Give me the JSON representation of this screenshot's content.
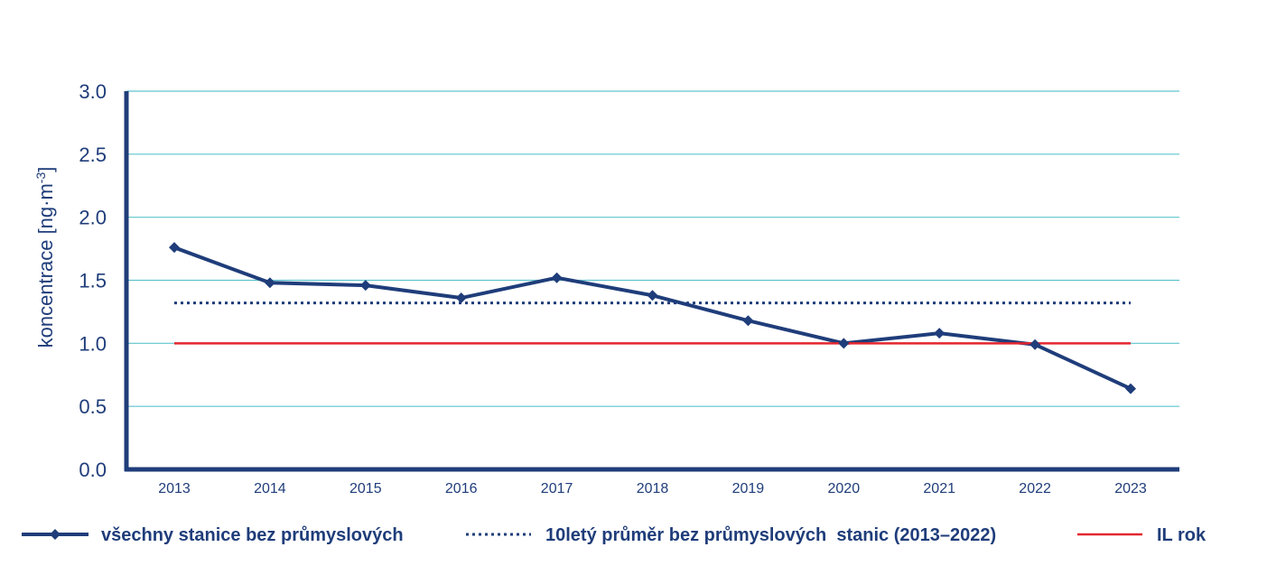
{
  "chart_data": {
    "type": "line",
    "ylabel_main": "koncentrace [ng·m",
    "ylabel_sup": "-3",
    "ylabel_end": "]",
    "xlabel": "",
    "ylim": [
      0,
      3
    ],
    "y_ticks": [
      "0.0",
      "0.5",
      "1.0",
      "1.5",
      "2.0",
      "2.5",
      "3.0"
    ],
    "y_tick_values": [
      0,
      0.5,
      1.0,
      1.5,
      2.0,
      2.5,
      3.0
    ],
    "categories": [
      "2013",
      "2014",
      "2015",
      "2016",
      "2017",
      "2018",
      "2019",
      "2020",
      "2021",
      "2022",
      "2023"
    ],
    "grid": true,
    "legend_position": "bottom",
    "series": [
      {
        "name": "všechny stanice bez průmyslových",
        "style": "solid-diamond",
        "color": "#1f3d7a",
        "values": [
          1.76,
          1.48,
          1.46,
          1.36,
          1.52,
          1.38,
          1.18,
          1.0,
          1.08,
          0.99,
          0.64
        ]
      },
      {
        "name": "10letý průměr bez průmyslových  stanic (2013–2022)",
        "style": "dotted",
        "color": "#1f3d7a",
        "values": [
          1.32,
          1.32,
          1.32,
          1.32,
          1.32,
          1.32,
          1.32,
          1.32,
          1.32,
          1.32,
          1.32
        ]
      },
      {
        "name": "IL rok",
        "style": "solid",
        "color": "#e3262d",
        "values": [
          1.0,
          1.0,
          1.0,
          1.0,
          1.0,
          1.0,
          1.0,
          1.0,
          1.0,
          1.0,
          1.0
        ]
      }
    ],
    "gridline_color": "#5ec4cc",
    "axis_color": "#1f3d7a"
  }
}
